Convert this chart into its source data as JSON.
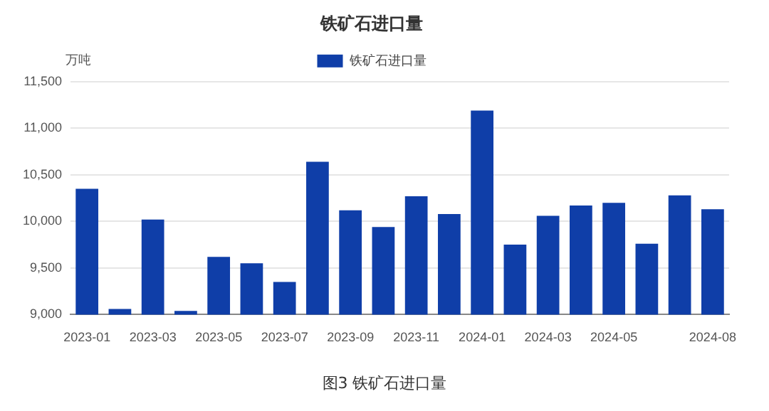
{
  "chart_data": {
    "type": "bar",
    "title": "铁矿石进口量",
    "ylabel": "万吨",
    "annotations": [
      "图3  铁矿石进口量"
    ],
    "categories": [
      "2023-01",
      null,
      "2023-03",
      null,
      "2023-05",
      null,
      "2023-07",
      null,
      "2023-09",
      null,
      "2023-11",
      null,
      "2024-01",
      null,
      "2024-03",
      null,
      "2024-05",
      null,
      null,
      "2024-08"
    ],
    "series": [
      {
        "name": "铁矿石进口量",
        "color": "#0f3ea8",
        "values": [
          10350,
          9060,
          10020,
          9040,
          9620,
          9550,
          9350,
          10640,
          10120,
          9940,
          10270,
          10080,
          11190,
          9750,
          10060,
          10170,
          10200,
          9760,
          10280,
          10130
        ]
      }
    ],
    "ylim": [
      9000,
      11500
    ],
    "yticks": [
      {
        "value": 9000,
        "label": "9,000"
      },
      {
        "value": 9500,
        "label": "9,500"
      },
      {
        "value": 10000,
        "label": "10,000"
      },
      {
        "value": 10500,
        "label": "10,500"
      },
      {
        "value": 11000,
        "label": "11,000"
      },
      {
        "value": 11500,
        "label": "11,500"
      }
    ],
    "grid": "y",
    "legend": "top"
  }
}
